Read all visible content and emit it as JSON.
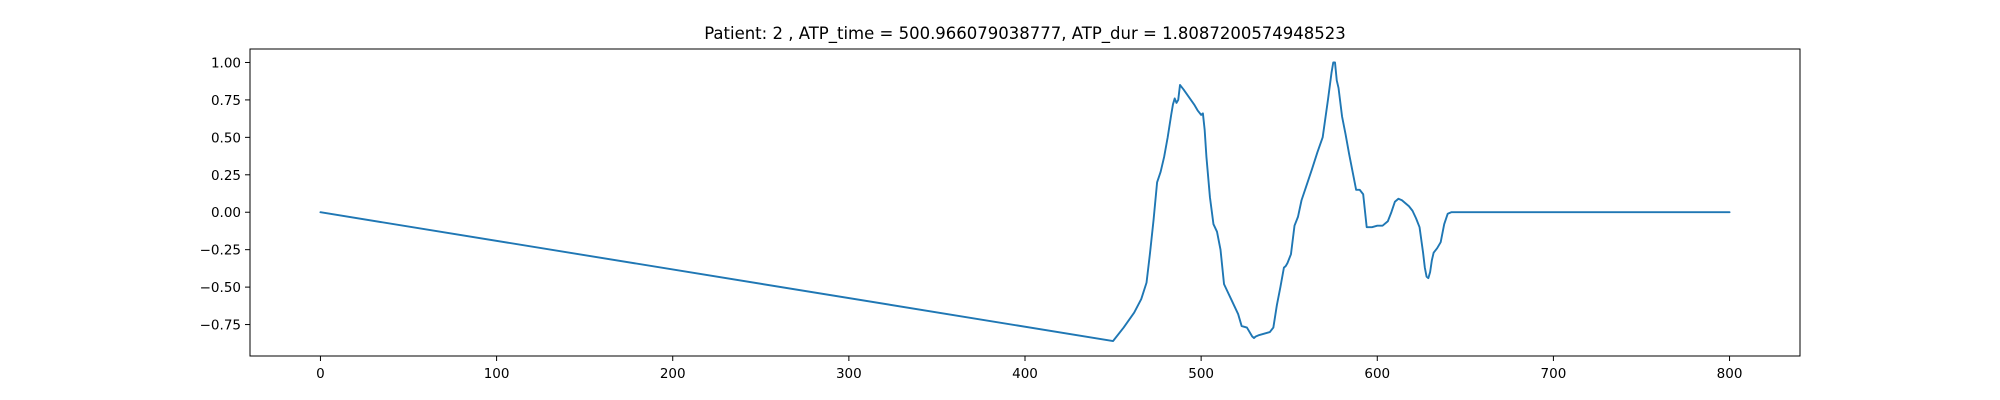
{
  "chart_data": {
    "type": "line",
    "title": "Patient: 2 , ATP_time = 500.966079038777, ATP_dur = 1.8087200574948523",
    "xlabel": "",
    "ylabel": "",
    "xlim": [
      -40,
      840
    ],
    "ylim": [
      -0.96,
      1.09
    ],
    "xticks": [
      0,
      100,
      200,
      300,
      400,
      500,
      600,
      700,
      800
    ],
    "yticks": [
      -0.75,
      -0.5,
      -0.25,
      0.0,
      0.25,
      0.5,
      0.75,
      1.0
    ],
    "xtick_labels": [
      "0",
      "100",
      "200",
      "300",
      "400",
      "500",
      "600",
      "700",
      "800"
    ],
    "ytick_labels": [
      "−0.75",
      "−0.50",
      "−0.25",
      "0.00",
      "0.25",
      "0.50",
      "0.75",
      "1.00"
    ],
    "grid": false,
    "series": [
      {
        "color": "#1f77b4",
        "x": [
          0,
          450,
          456,
          462,
          466,
          469,
          471,
          473,
          475,
          477,
          479,
          481,
          483,
          484,
          485,
          486,
          487,
          488,
          490,
          493,
          496,
          498,
          500,
          501,
          502,
          503,
          505,
          507,
          509,
          511,
          513,
          515,
          517,
          519,
          521,
          523,
          526,
          529,
          530,
          531,
          533,
          536,
          539,
          541,
          543,
          545,
          547,
          548,
          549,
          551,
          553,
          555,
          557,
          559,
          561,
          563,
          566,
          569,
          572,
          574,
          575,
          576,
          577,
          578,
          580,
          582,
          584,
          586,
          588,
          590,
          592,
          594,
          597,
          600,
          603,
          606,
          608,
          610,
          612,
          614,
          616,
          618,
          620,
          622,
          624,
          626,
          627,
          628,
          629,
          630,
          631,
          632,
          634,
          636,
          638,
          640,
          642,
          700,
          750,
          800
        ],
        "y": [
          0.0,
          -0.86,
          -0.77,
          -0.67,
          -0.58,
          -0.47,
          -0.27,
          -0.05,
          0.2,
          0.27,
          0.37,
          0.5,
          0.65,
          0.72,
          0.76,
          0.73,
          0.75,
          0.85,
          0.82,
          0.77,
          0.72,
          0.68,
          0.65,
          0.66,
          0.55,
          0.37,
          0.1,
          -0.08,
          -0.13,
          -0.25,
          -0.48,
          -0.53,
          -0.58,
          -0.63,
          -0.68,
          -0.76,
          -0.77,
          -0.83,
          -0.84,
          -0.83,
          -0.82,
          -0.81,
          -0.8,
          -0.77,
          -0.62,
          -0.5,
          -0.37,
          -0.36,
          -0.34,
          -0.28,
          -0.09,
          -0.03,
          0.08,
          0.15,
          0.22,
          0.29,
          0.4,
          0.5,
          0.75,
          0.93,
          1.0,
          1.0,
          0.88,
          0.83,
          0.64,
          0.52,
          0.39,
          0.27,
          0.15,
          0.15,
          0.12,
          -0.1,
          -0.1,
          -0.09,
          -0.09,
          -0.06,
          0.0,
          0.07,
          0.09,
          0.08,
          0.06,
          0.04,
          0.01,
          -0.04,
          -0.1,
          -0.27,
          -0.37,
          -0.43,
          -0.44,
          -0.4,
          -0.32,
          -0.27,
          -0.24,
          -0.2,
          -0.08,
          -0.01,
          0.0,
          0.0,
          0.0,
          0.0
        ]
      }
    ]
  }
}
